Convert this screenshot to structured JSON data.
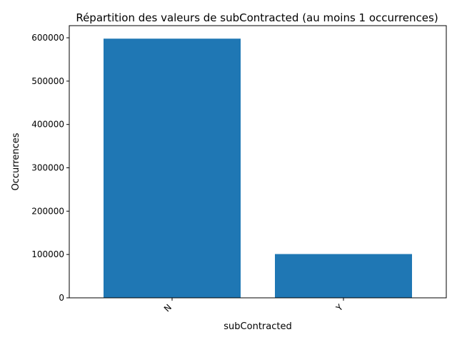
{
  "chart_data": {
    "type": "bar",
    "title": "Répartition des valeurs de subContracted (au moins 1 occurrences)",
    "xlabel": "subContracted",
    "ylabel": "Occurrences",
    "categories": [
      "N",
      "Y"
    ],
    "values": [
      598000,
      101000
    ],
    "ylim": [
      0,
      628000
    ],
    "yticks": [
      0,
      100000,
      200000,
      300000,
      400000,
      500000,
      600000
    ],
    "ytick_labels": [
      "0",
      "100000",
      "200000",
      "300000",
      "400000",
      "500000",
      "600000"
    ],
    "grid": false,
    "legend": "none",
    "bar_color": "#1f77b4"
  }
}
